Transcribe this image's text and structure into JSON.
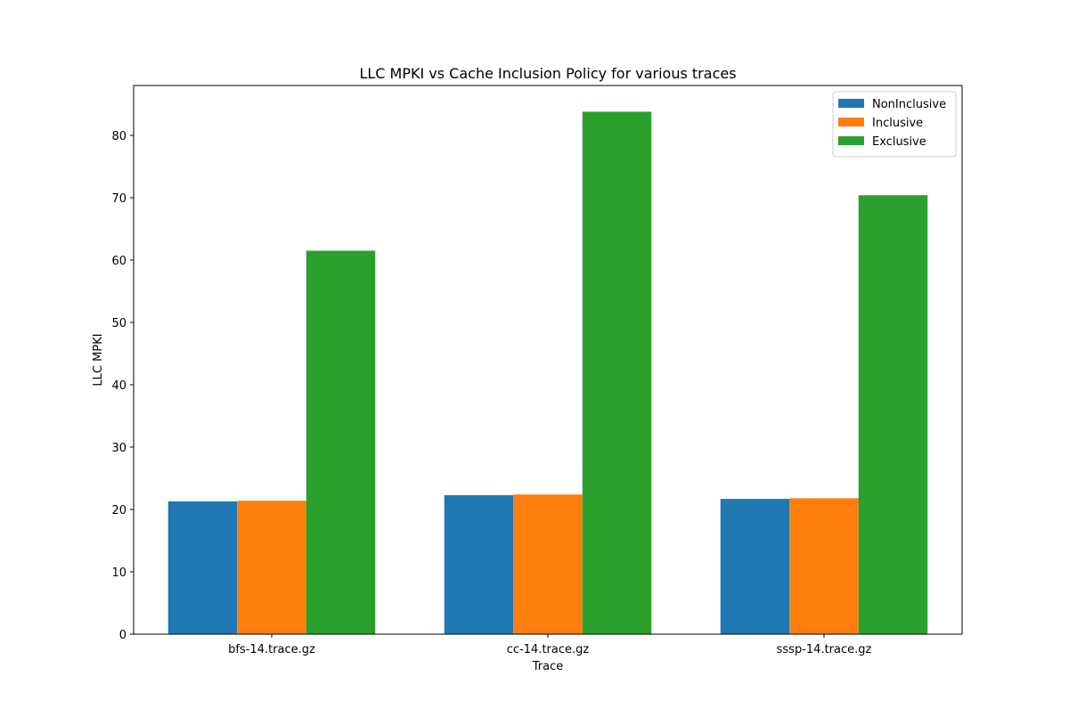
{
  "chart_data": {
    "type": "bar",
    "title": "LLC MPKI vs Cache Inclusion Policy for various traces",
    "xlabel": "Trace",
    "ylabel": "LLC MPKI",
    "categories": [
      "bfs-14.trace.gz",
      "cc-14.trace.gz",
      "sssp-14.trace.gz"
    ],
    "series": [
      {
        "name": "NonInclusive",
        "color": "#1f77b4",
        "values": [
          21.3,
          22.3,
          21.7
        ]
      },
      {
        "name": "Inclusive",
        "color": "#ff7f0e",
        "values": [
          21.4,
          22.4,
          21.8
        ]
      },
      {
        "name": "Exclusive",
        "color": "#2ca02c",
        "values": [
          61.5,
          83.8,
          70.4
        ]
      }
    ],
    "ylim": [
      0,
      88
    ],
    "yticks": [
      0,
      10,
      20,
      30,
      40,
      50,
      60,
      70,
      80
    ],
    "grid": false,
    "legend_position": "top-right"
  }
}
